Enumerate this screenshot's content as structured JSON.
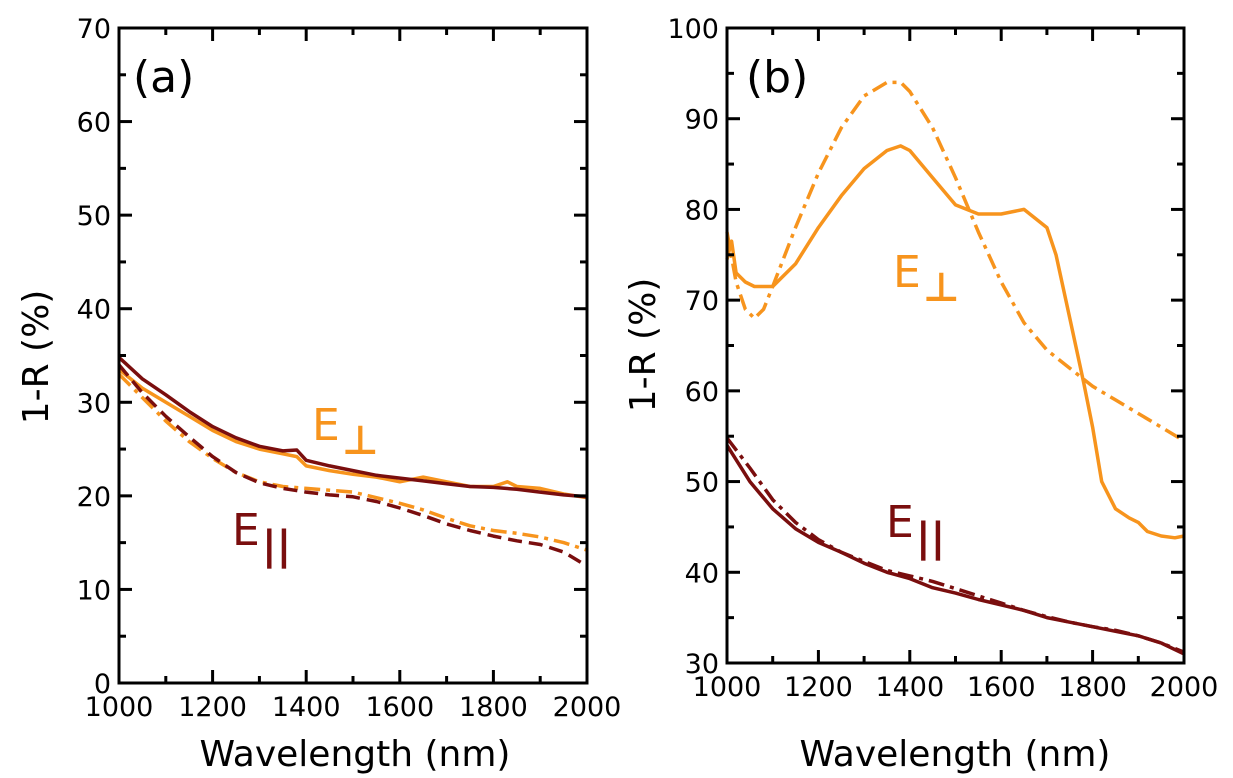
{
  "colors": {
    "orange": "#F7941D",
    "dark_red": "#7A0E0E",
    "axis": "#000000"
  },
  "chart_data": [
    {
      "type": "line",
      "panel_label": "(a)",
      "xlabel": "Wavelength (nm)",
      "ylabel": "1-R (%)",
      "xlim": [
        1000,
        2000
      ],
      "ylim": [
        0,
        70
      ],
      "xticks": [
        1000,
        1200,
        1400,
        1600,
        1800,
        2000
      ],
      "yticks": [
        0,
        10,
        20,
        30,
        40,
        50,
        60,
        70
      ],
      "annotations": [
        {
          "base": "E",
          "sub": "⊥",
          "color": "orange"
        },
        {
          "base": "E",
          "sub": "||",
          "color": "dark_red"
        }
      ],
      "series": [
        {
          "color": "orange",
          "style": "solid",
          "x": [
            1000,
            1050,
            1100,
            1150,
            1200,
            1250,
            1300,
            1350,
            1380,
            1400,
            1450,
            1500,
            1550,
            1600,
            1650,
            1700,
            1750,
            1800,
            1830,
            1850,
            1900,
            1950,
            2000
          ],
          "y": [
            33.5,
            31.5,
            30.0,
            28.5,
            27.0,
            25.8,
            25.0,
            24.5,
            24.2,
            23.2,
            22.7,
            22.3,
            22.0,
            21.5,
            22.0,
            21.5,
            21.0,
            21.0,
            21.5,
            21.0,
            20.8,
            20.2,
            19.8
          ]
        },
        {
          "color": "dark_red",
          "style": "solid",
          "x": [
            1000,
            1050,
            1100,
            1150,
            1200,
            1250,
            1300,
            1350,
            1380,
            1400,
            1450,
            1500,
            1550,
            1600,
            1650,
            1700,
            1750,
            1800,
            1850,
            1900,
            1950,
            2000
          ],
          "y": [
            34.8,
            32.5,
            30.8,
            29.0,
            27.4,
            26.2,
            25.3,
            24.8,
            24.9,
            23.8,
            23.2,
            22.7,
            22.2,
            21.9,
            21.6,
            21.3,
            21.0,
            20.9,
            20.7,
            20.4,
            20.1,
            19.9
          ]
        },
        {
          "color": "orange",
          "style": "dashdot",
          "x": [
            1000,
            1050,
            1100,
            1150,
            1200,
            1250,
            1300,
            1350,
            1400,
            1450,
            1500,
            1550,
            1600,
            1650,
            1700,
            1750,
            1800,
            1850,
            1900,
            1950,
            2000
          ],
          "y": [
            33.0,
            30.5,
            28.0,
            25.8,
            24.0,
            22.5,
            21.5,
            21.0,
            20.8,
            20.6,
            20.4,
            19.8,
            19.2,
            18.5,
            17.6,
            16.8,
            16.3,
            16.0,
            15.6,
            15.0,
            14.2
          ]
        },
        {
          "color": "dark_red",
          "style": "dashed",
          "x": [
            1000,
            1050,
            1100,
            1150,
            1200,
            1250,
            1300,
            1350,
            1400,
            1450,
            1500,
            1550,
            1600,
            1650,
            1700,
            1750,
            1800,
            1850,
            1900,
            1950,
            2000
          ],
          "y": [
            34.0,
            31.0,
            28.5,
            26.3,
            24.2,
            22.5,
            21.4,
            20.8,
            20.4,
            20.1,
            19.9,
            19.4,
            18.7,
            17.9,
            17.0,
            16.3,
            15.7,
            15.2,
            14.8,
            14.0,
            12.5
          ]
        }
      ]
    },
    {
      "type": "line",
      "panel_label": "(b)",
      "xlabel": "Wavelength (nm)",
      "ylabel": "1-R (%)",
      "xlim": [
        1000,
        2000
      ],
      "ylim": [
        30,
        100
      ],
      "xticks": [
        1000,
        1200,
        1400,
        1600,
        1800,
        2000
      ],
      "yticks": [
        30,
        40,
        50,
        60,
        70,
        80,
        90,
        100
      ],
      "annotations": [
        {
          "base": "E",
          "sub": "⊥",
          "color": "orange"
        },
        {
          "base": "E",
          "sub": "||",
          "color": "dark_red"
        }
      ],
      "series": [
        {
          "color": "orange",
          "style": "solid",
          "x": [
            1000,
            1010,
            1020,
            1040,
            1060,
            1080,
            1100,
            1150,
            1200,
            1250,
            1300,
            1350,
            1380,
            1400,
            1450,
            1500,
            1550,
            1600,
            1650,
            1700,
            1720,
            1750,
            1780,
            1800,
            1820,
            1850,
            1880,
            1900,
            1920,
            1950,
            1980,
            2000
          ],
          "y": [
            74.5,
            76.5,
            73.0,
            72.0,
            71.5,
            71.5,
            71.5,
            74.0,
            78.0,
            81.5,
            84.5,
            86.5,
            87.0,
            86.5,
            83.5,
            80.5,
            79.5,
            79.5,
            80.0,
            78.0,
            75.0,
            68.0,
            61.0,
            56.0,
            50.0,
            47.0,
            46.0,
            45.5,
            44.5,
            44.0,
            43.8,
            44.0
          ]
        },
        {
          "color": "orange",
          "style": "dashdot",
          "x": [
            1000,
            1020,
            1040,
            1060,
            1080,
            1100,
            1150,
            1200,
            1250,
            1300,
            1350,
            1380,
            1400,
            1450,
            1500,
            1550,
            1600,
            1650,
            1700,
            1750,
            1800,
            1850,
            1900,
            1950,
            2000
          ],
          "y": [
            77.5,
            72.0,
            69.0,
            68.0,
            69.0,
            71.5,
            78.0,
            84.0,
            89.0,
            92.5,
            94.0,
            94.0,
            93.0,
            89.0,
            83.5,
            77.5,
            72.0,
            67.5,
            64.5,
            62.5,
            60.5,
            59.0,
            57.5,
            56.0,
            54.5
          ]
        },
        {
          "color": "dark_red",
          "style": "solid",
          "x": [
            1000,
            1050,
            1100,
            1150,
            1200,
            1250,
            1300,
            1350,
            1400,
            1450,
            1500,
            1550,
            1600,
            1650,
            1700,
            1750,
            1800,
            1850,
            1900,
            1950,
            2000
          ],
          "y": [
            54.0,
            50.0,
            47.0,
            44.8,
            43.3,
            42.2,
            41.0,
            40.0,
            39.3,
            38.3,
            37.7,
            37.0,
            36.4,
            35.8,
            35.0,
            34.5,
            34.0,
            33.5,
            33.0,
            32.2,
            31.0
          ]
        },
        {
          "color": "dark_red",
          "style": "dashdot",
          "x": [
            1000,
            1050,
            1100,
            1150,
            1200,
            1250,
            1300,
            1350,
            1400,
            1450,
            1500,
            1550,
            1600,
            1650,
            1700,
            1750,
            1800,
            1850,
            1900,
            1950,
            2000
          ],
          "y": [
            54.8,
            51.5,
            48.0,
            45.5,
            43.6,
            42.2,
            41.2,
            40.2,
            39.6,
            39.0,
            38.2,
            37.4,
            36.6,
            35.8,
            35.1,
            34.5,
            34.0,
            33.6,
            33.0,
            32.2,
            31.2
          ]
        }
      ]
    }
  ]
}
